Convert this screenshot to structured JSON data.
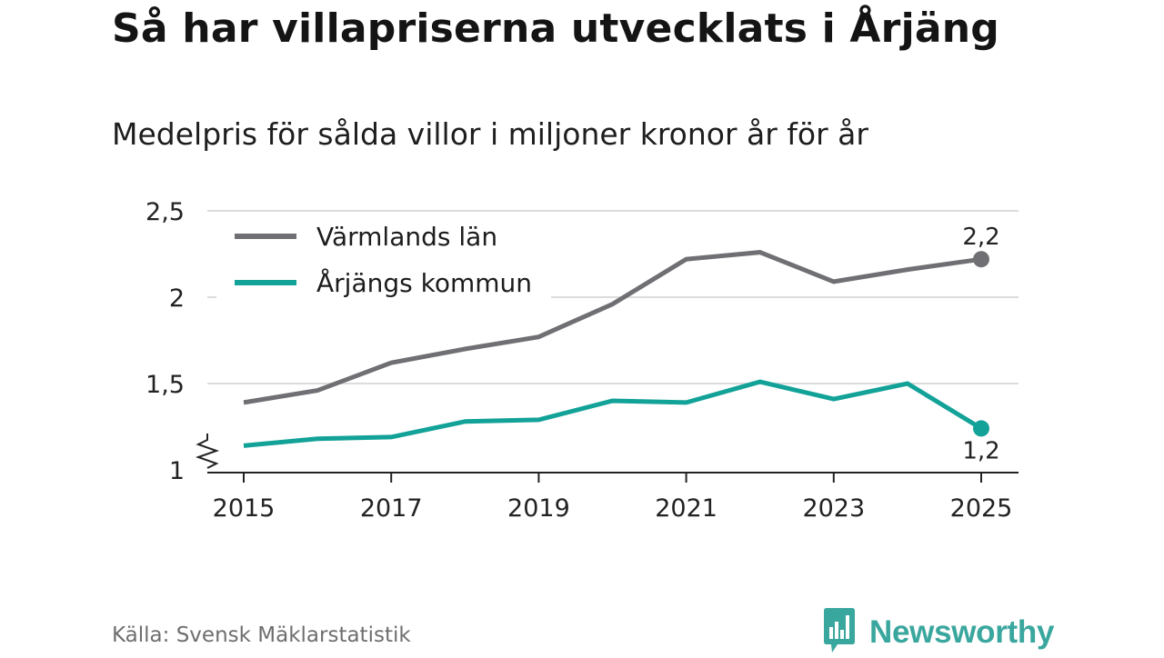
{
  "title": "Så har villapriserna utvecklats i Årjäng",
  "subtitle": "Medelpris för sålda villor i miljoner kronor år för år",
  "source": "Källa: Svensk Mäklarstatistik",
  "brand": {
    "name": "Newsworthy",
    "icon": "newsworthy-logo-icon",
    "color": "#3aa79e"
  },
  "colors": {
    "grid": "#dcdcdc",
    "axis": "#222222",
    "text": "#222222"
  },
  "chart_data": {
    "type": "line",
    "title": "Så har villapriserna utvecklats i Årjäng",
    "subtitle": "Medelpris för sålda villor i miljoner kronor år för år",
    "xlabel": "",
    "ylabel": "",
    "x": [
      2015,
      2016,
      2017,
      2018,
      2019,
      2020,
      2021,
      2022,
      2023,
      2024,
      2025
    ],
    "xticks": [
      2015,
      2017,
      2019,
      2021,
      2023,
      2025
    ],
    "xtick_labels": [
      "2015",
      "2017",
      "2019",
      "2021",
      "2023",
      "2025"
    ],
    "ylim": [
      1,
      2.5
    ],
    "yticks": [
      1,
      1.5,
      2,
      2.5
    ],
    "ytick_labels": [
      "1",
      "1,5",
      "2",
      "2,5"
    ],
    "y_axis_break": true,
    "grid": true,
    "legend_position": "top-left",
    "series": [
      {
        "name": "Värmlands län",
        "color": "#707074",
        "values": [
          1.39,
          1.46,
          1.62,
          1.7,
          1.77,
          1.96,
          2.22,
          2.26,
          2.09,
          2.16,
          2.22
        ],
        "end_label": "2,2",
        "end_label_position": "above"
      },
      {
        "name": "Årjängs kommun",
        "color": "#12a298",
        "values": [
          1.14,
          1.18,
          1.19,
          1.28,
          1.29,
          1.4,
          1.39,
          1.51,
          1.41,
          1.5,
          1.24
        ],
        "end_label": "1,2",
        "end_label_position": "below"
      }
    ]
  }
}
